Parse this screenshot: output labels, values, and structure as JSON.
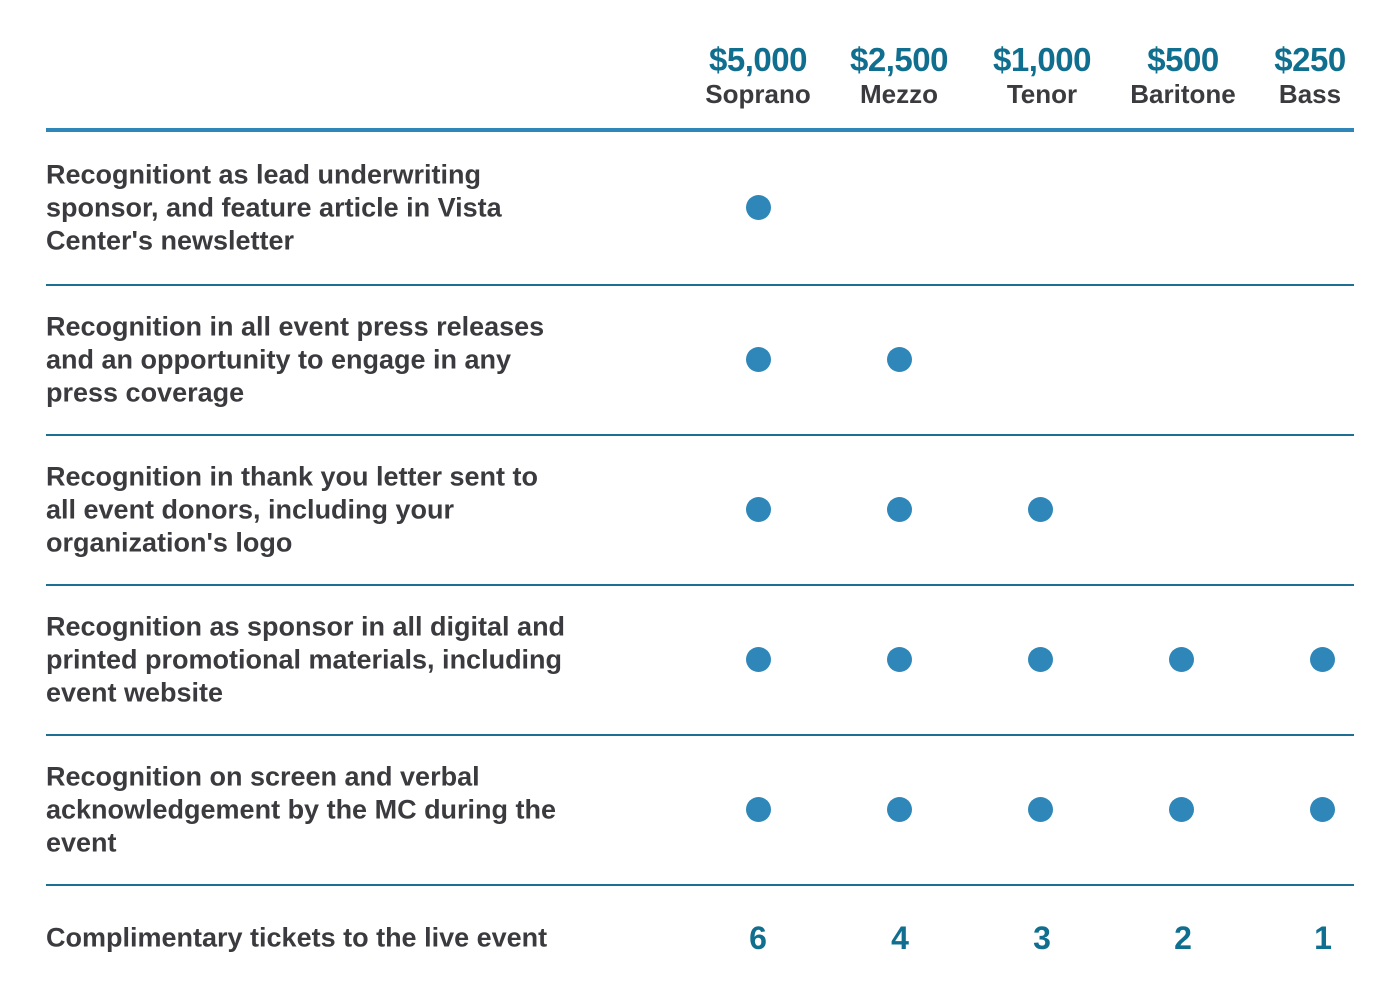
{
  "tiers": [
    {
      "price": "$5,000",
      "name": "Soprano"
    },
    {
      "price": "$2,500",
      "name": "Mezzo"
    },
    {
      "price": "$1,000",
      "name": "Tenor"
    },
    {
      "price": "$500",
      "name": "Baritone"
    },
    {
      "price": "$250",
      "name": "Bass"
    }
  ],
  "benefits": [
    {
      "label": "Recognitiont as lead underwriting sponsor, and feature article in Vista Center's newsletter",
      "included": [
        true,
        false,
        false,
        false,
        false
      ]
    },
    {
      "label": "Recognition in all event press releases and an opportunity to engage in any press coverage",
      "included": [
        true,
        true,
        false,
        false,
        false
      ]
    },
    {
      "label": "Recognition in thank you letter sent to all event donors, including your organization's logo",
      "included": [
        true,
        true,
        true,
        false,
        false
      ]
    },
    {
      "label": "Recognition as sponsor in all digital and printed promotional materials, including event website",
      "included": [
        true,
        true,
        true,
        true,
        true
      ]
    },
    {
      "label": "Recognition on screen and verbal acknowledgement by the MC during the event",
      "included": [
        true,
        true,
        true,
        true,
        true
      ]
    }
  ],
  "tickets": {
    "label": "Complimentary tickets to the live event",
    "counts": [
      "6",
      "4",
      "3",
      "2",
      "1"
    ]
  },
  "colors": {
    "accent": "#2e87b8",
    "price_text": "#106f8f",
    "body_text": "#3b3b3f",
    "divider": "#1f6f94"
  }
}
